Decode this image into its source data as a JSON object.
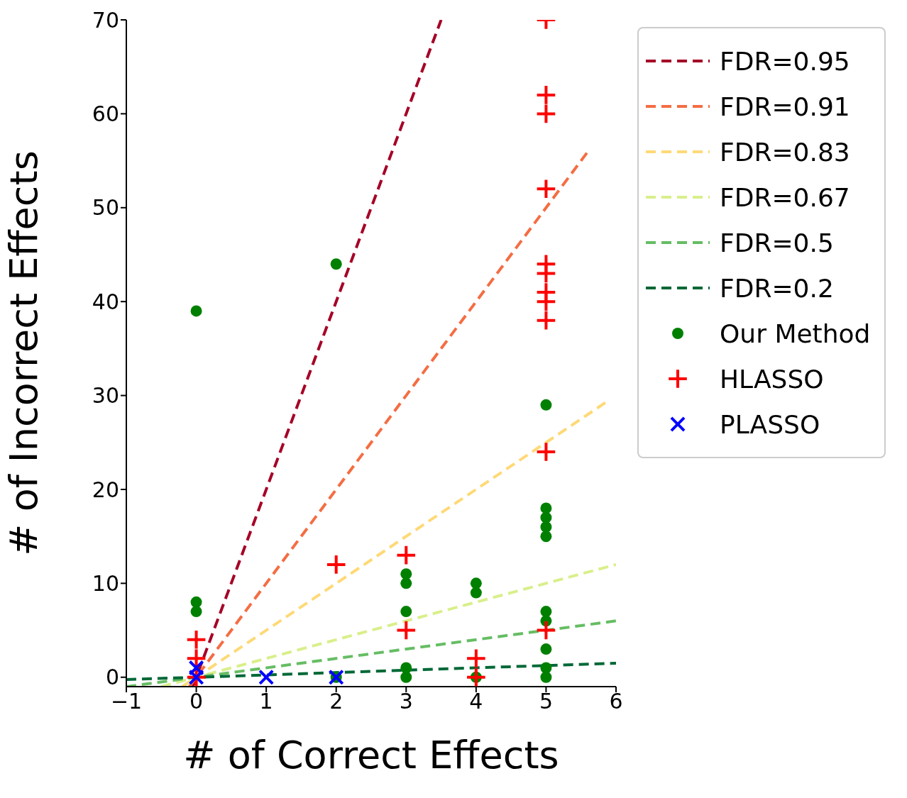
{
  "chart_data": {
    "type": "scatter",
    "xlabel": "# of Correct Effects",
    "ylabel": "# of Incorrect Effects",
    "xlim": [
      -1,
      6
    ],
    "ylim": [
      -1,
      70
    ],
    "xticks": [
      {
        "value": -1,
        "label": "−1"
      },
      0,
      1,
      2,
      3,
      4,
      5,
      6
    ],
    "yticks": [
      0,
      10,
      20,
      30,
      40,
      50,
      60,
      70
    ],
    "grid": false,
    "legend": "right",
    "series": [
      {
        "name": "FDR=0.95",
        "type": "line",
        "color": "#a50026",
        "line_style": "dashed",
        "marker": "none",
        "x": [
          -0.05,
          3.5
        ],
        "values": [
          -1,
          70
        ]
      },
      {
        "name": "FDR=0.91",
        "type": "line",
        "color": "#f46d43",
        "line_style": "dashed",
        "marker": "none",
        "x": [
          -0.1,
          5.6
        ],
        "values": [
          -1,
          56
        ]
      },
      {
        "name": "FDR=0.83",
        "type": "line",
        "color": "#fed976",
        "line_style": "dashed",
        "marker": "none",
        "x": [
          -0.2,
          5.85
        ],
        "values": [
          -1,
          29.25
        ]
      },
      {
        "name": "FDR=0.67",
        "type": "line",
        "color": "#d9ef8b",
        "line_style": "dashed",
        "marker": "none",
        "x": [
          -0.5,
          6
        ],
        "values": [
          -1,
          12
        ]
      },
      {
        "name": "FDR=0.5",
        "type": "line",
        "color": "#66bd63",
        "line_style": "dashed",
        "marker": "none",
        "x": [
          -1,
          6
        ],
        "values": [
          -1,
          6
        ]
      },
      {
        "name": "FDR=0.2",
        "type": "line",
        "color": "#006837",
        "line_style": "dashed",
        "marker": "none",
        "x": [
          -1,
          6
        ],
        "values": [
          -0.25,
          1.5
        ]
      },
      {
        "name": "Our Method",
        "type": "scatter",
        "color": "#008000",
        "marker": "circle",
        "x": [
          0,
          0,
          0,
          2,
          2,
          3,
          3,
          3,
          3,
          3,
          4,
          4,
          4,
          5,
          5,
          5,
          5,
          5,
          5,
          5,
          5,
          5,
          5
        ],
        "values": [
          8,
          7,
          39,
          44,
          0,
          11,
          10,
          7,
          1,
          0,
          10,
          9,
          0,
          29,
          18,
          17,
          16,
          15,
          7,
          6,
          3,
          1,
          0
        ]
      },
      {
        "name": "HLASSO",
        "type": "scatter",
        "color": "#ff0000",
        "marker": "cross",
        "x": [
          0,
          0,
          0,
          2,
          3,
          3,
          4,
          4,
          5,
          5,
          5,
          5,
          5,
          5,
          5,
          5,
          5,
          5,
          5
        ],
        "values": [
          4,
          2,
          0,
          12,
          13,
          5,
          2,
          0,
          70,
          62,
          60,
          52,
          44,
          43,
          41,
          40,
          38,
          24,
          5
        ]
      },
      {
        "name": "PLASSO",
        "type": "scatter",
        "color": "#0000ff",
        "marker": "x",
        "x": [
          0,
          0,
          1,
          2
        ],
        "values": [
          1,
          0,
          0,
          0
        ]
      }
    ]
  }
}
